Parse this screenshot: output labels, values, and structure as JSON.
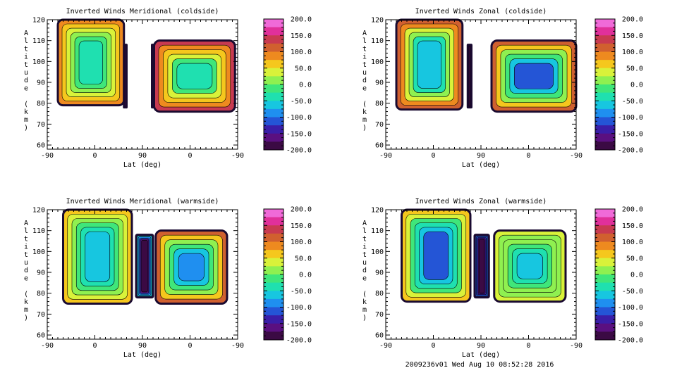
{
  "figure": {
    "footer": "2009236v01 Wed Aug 10 08:52:28 2016"
  },
  "chart_data": [
    {
      "type": "heatmap",
      "title": "Inverted Winds Meridional (coldside)",
      "xlabel": "Lat (deg)",
      "ylabel": "Altitude (km)",
      "x_ticks": [
        "-90",
        "0",
        "90",
        "0",
        "-90"
      ],
      "y_ticks": [
        "60",
        "70",
        "80",
        "90",
        "100",
        "110",
        "120"
      ],
      "ylim": [
        58,
        120
      ],
      "colorbar_ticks": [
        "200.0",
        "150.0",
        "100.0",
        "50.0",
        "0.0",
        "-50.0",
        "-100.0",
        "-150.0",
        "-200.0"
      ],
      "colorbar_range": [
        -200,
        200
      ],
      "blocks": [
        {
          "x": [
            -70,
            55
          ],
          "y": [
            79,
            120
          ],
          "value_range": [
            -30,
            80
          ]
        },
        {
          "x": [
            55,
            60
          ],
          "y": [
            78,
            108
          ],
          "value_range": [
            -190,
            -100
          ]
        },
        {
          "x": [
            108,
            112
          ],
          "y": [
            78,
            108
          ],
          "value_range": [
            -190,
            -100
          ]
        },
        {
          "x": [
            112,
            265
          ],
          "y": [
            76,
            110
          ],
          "value_range": [
            -40,
            130
          ]
        }
      ]
    },
    {
      "type": "heatmap",
      "title": "Inverted Winds Zonal (coldside)",
      "xlabel": "Lat (deg)",
      "ylabel": "Altitude (km)",
      "x_ticks": [
        "-90",
        "0",
        "90",
        "0",
        "-90"
      ],
      "y_ticks": [
        "60",
        "70",
        "80",
        "90",
        "100",
        "110",
        "120"
      ],
      "ylim": [
        58,
        120
      ],
      "colorbar_ticks": [
        "200.0",
        "150.0",
        "100.0",
        "50.0",
        "0.0",
        "-50.0",
        "-100.0",
        "-150.0",
        "-200.0"
      ],
      "colorbar_range": [
        -200,
        200
      ],
      "blocks": [
        {
          "x": [
            -70,
            55
          ],
          "y": [
            77,
            120
          ],
          "value_range": [
            -60,
            110
          ]
        },
        {
          "x": [
            65,
            72
          ],
          "y": [
            78,
            108
          ],
          "value_range": [
            -190,
            -100
          ]
        },
        {
          "x": [
            110,
            270
          ],
          "y": [
            76,
            110
          ],
          "value_range": [
            -110,
            110
          ]
        }
      ]
    },
    {
      "type": "heatmap",
      "title": "Inverted Winds Meridional (warmside)",
      "xlabel": "Lat (deg)",
      "ylabel": "Altitude (km)",
      "x_ticks": [
        "-90",
        "0",
        "90",
        "0",
        "-90"
      ],
      "y_ticks": [
        "60",
        "70",
        "80",
        "90",
        "100",
        "110",
        "120"
      ],
      "ylim": [
        58,
        120
      ],
      "colorbar_ticks": [
        "200.0",
        "150.0",
        "100.0",
        "50.0",
        "0.0",
        "-50.0",
        "-100.0",
        "-150.0",
        "-200.0"
      ],
      "colorbar_range": [
        -200,
        200
      ],
      "blocks": [
        {
          "x": [
            -60,
            70
          ],
          "y": [
            75,
            120
          ],
          "value_range": [
            -60,
            50
          ]
        },
        {
          "x": [
            78,
            110
          ],
          "y": [
            78,
            108
          ],
          "value_range": [
            -180,
            -40
          ]
        },
        {
          "x": [
            115,
            250
          ],
          "y": [
            75,
            110
          ],
          "value_range": [
            -90,
            100
          ]
        }
      ]
    },
    {
      "type": "heatmap",
      "title": "Inverted Winds Zonal (warmside)",
      "xlabel": "Lat (deg)",
      "ylabel": "Altitude (km)",
      "x_ticks": [
        "-90",
        "0",
        "90",
        "0",
        "-90"
      ],
      "y_ticks": [
        "60",
        "70",
        "80",
        "90",
        "100",
        "110",
        "120"
      ],
      "ylim": [
        58,
        120
      ],
      "colorbar_ticks": [
        "200.0",
        "150.0",
        "100.0",
        "50.0",
        "0.0",
        "-50.0",
        "-100.0",
        "-150.0",
        "-200.0"
      ],
      "colorbar_range": [
        -200,
        200
      ],
      "blocks": [
        {
          "x": [
            -60,
            70
          ],
          "y": [
            76,
            120
          ],
          "value_range": [
            -110,
            70
          ]
        },
        {
          "x": [
            78,
            105
          ],
          "y": [
            78,
            108
          ],
          "value_range": [
            -190,
            -80
          ]
        },
        {
          "x": [
            115,
            250
          ],
          "y": [
            76,
            110
          ],
          "value_range": [
            -60,
            40
          ]
        }
      ]
    }
  ]
}
